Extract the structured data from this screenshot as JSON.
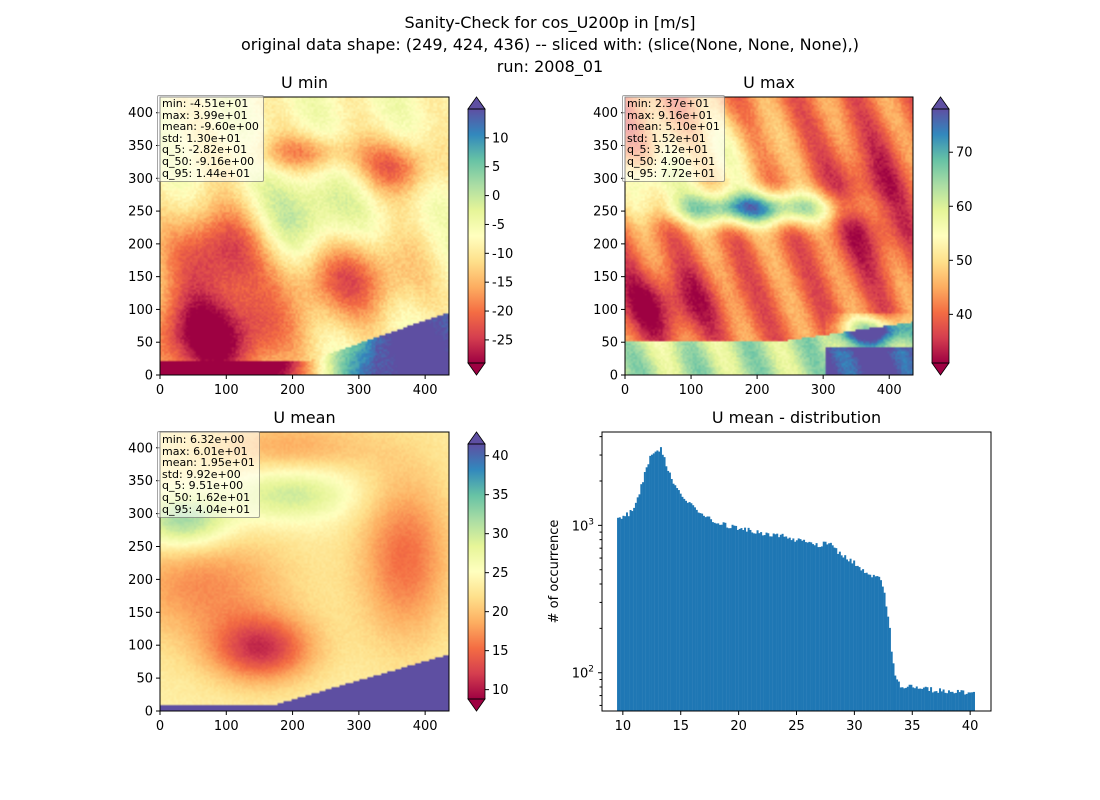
{
  "figure": {
    "title_lines": [
      "Sanity-Check for cos_U200p in [m/s]",
      "original data shape: (249, 424, 436) -- sliced with: (slice(None, None, None),)",
      "run: 2008_01"
    ]
  },
  "chart_data": [
    {
      "type": "heatmap",
      "title": "U min",
      "colormap": "Spectral",
      "xlim": [
        0,
        436
      ],
      "ylim": [
        0,
        424
      ],
      "xticks": [
        0,
        100,
        200,
        300,
        400
      ],
      "yticks": [
        0,
        50,
        100,
        150,
        200,
        250,
        300,
        350,
        400
      ],
      "colorbar": {
        "vmin": -29,
        "vmax": 15,
        "ticks": [
          -25,
          -20,
          -15,
          -10,
          -5,
          0,
          5,
          10
        ],
        "extend": "both"
      },
      "stats": [
        "min: -4.51e+01",
        "max: 3.99e+01",
        "mean: -9.60e+00",
        "std: 1.30e+01",
        "q_5: -2.82e+01",
        "q_50: -9.16e+00",
        "q_95: 1.44e+01"
      ]
    },
    {
      "type": "heatmap",
      "title": "U max",
      "colormap": "Spectral",
      "xlim": [
        0,
        436
      ],
      "ylim": [
        0,
        424
      ],
      "xticks": [
        0,
        100,
        200,
        300,
        400
      ],
      "yticks": [
        0,
        50,
        100,
        150,
        200,
        250,
        300,
        350,
        400
      ],
      "colorbar": {
        "vmin": 31,
        "vmax": 78,
        "ticks": [
          40,
          50,
          60,
          70
        ],
        "extend": "both"
      },
      "stats": [
        "min: 2.37e+01",
        "max: 9.16e+01",
        "mean: 5.10e+01",
        "std: 1.52e+01",
        "q_5: 3.12e+01",
        "q_50: 4.90e+01",
        "q_95: 7.72e+01"
      ]
    },
    {
      "type": "heatmap",
      "title": "U mean",
      "colormap": "Spectral",
      "xlim": [
        0,
        436
      ],
      "ylim": [
        0,
        424
      ],
      "xticks": [
        0,
        100,
        200,
        300,
        400
      ],
      "yticks": [
        0,
        50,
        100,
        150,
        200,
        250,
        300,
        350,
        400
      ],
      "colorbar": {
        "vmin": 8.8,
        "vmax": 41.5,
        "ticks": [
          10,
          15,
          20,
          25,
          30,
          35,
          40
        ],
        "extend": "both"
      },
      "stats": [
        "min: 6.32e+00",
        "max: 6.01e+01",
        "mean: 1.95e+01",
        "std: 9.92e+00",
        "q_5: 9.51e+00",
        "q_50: 1.62e+01",
        "q_95: 4.04e+01"
      ]
    },
    {
      "type": "bar",
      "title": "U mean - distribution",
      "ylabel": "# of occurrence",
      "yscale": "log",
      "xlim": [
        8.2,
        41.8
      ],
      "ylim": [
        55,
        4300
      ],
      "xticks": [
        10,
        15,
        20,
        25,
        30,
        35,
        40
      ],
      "yticks": [
        {
          "value": 100,
          "label": "10",
          "sup": "2"
        },
        {
          "value": 1000,
          "label": "10",
          "sup": "3"
        }
      ],
      "color": "#1f77b4",
      "bin_edges_range": [
        9.5,
        40.4
      ],
      "profile": [
        [
          9.5,
          1080
        ],
        [
          10.0,
          1130
        ],
        [
          10.5,
          1200
        ],
        [
          11.0,
          1350
        ],
        [
          11.5,
          1750
        ],
        [
          12.0,
          2400
        ],
        [
          12.5,
          3050
        ],
        [
          13.0,
          3300
        ],
        [
          13.5,
          2950
        ],
        [
          14.0,
          2300
        ],
        [
          14.5,
          1850
        ],
        [
          15.0,
          1650
        ],
        [
          15.5,
          1480
        ],
        [
          16.0,
          1350
        ],
        [
          17.0,
          1180
        ],
        [
          18.0,
          1060
        ],
        [
          19.0,
          1000
        ],
        [
          20.0,
          960
        ],
        [
          21.0,
          930
        ],
        [
          22.0,
          890
        ],
        [
          23.0,
          860
        ],
        [
          24.0,
          840
        ],
        [
          25.0,
          800
        ],
        [
          26.0,
          760
        ],
        [
          27.0,
          730
        ],
        [
          28.0,
          780
        ],
        [
          28.3,
          690
        ],
        [
          29.0,
          620
        ],
        [
          30.0,
          560
        ],
        [
          31.0,
          480
        ],
        [
          31.5,
          440
        ],
        [
          32.0,
          460
        ],
        [
          32.5,
          380
        ],
        [
          33.0,
          220
        ],
        [
          33.3,
          120
        ],
        [
          33.6,
          88
        ],
        [
          34.0,
          82
        ],
        [
          35.0,
          80
        ],
        [
          36.0,
          78
        ],
        [
          37.0,
          76
        ],
        [
          38.0,
          75
        ],
        [
          39.0,
          74
        ],
        [
          40.4,
          72
        ]
      ]
    }
  ]
}
